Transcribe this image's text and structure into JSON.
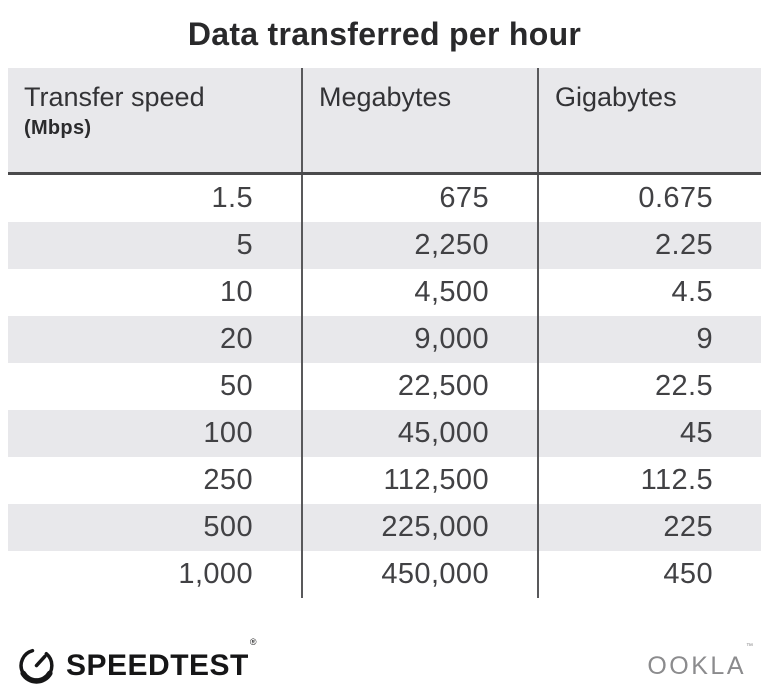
{
  "title": "Data transferred per hour",
  "header": {
    "transfer_speed_label": "Transfer speed",
    "transfer_speed_unit": "(Mbps)",
    "megabytes_label": "Megabytes",
    "gigabytes_label": "Gigabytes"
  },
  "chart_data": {
    "type": "table",
    "title": "Data transferred per hour",
    "columns": [
      "Transfer speed (Mbps)",
      "Megabytes",
      "Gigabytes"
    ],
    "rows": [
      [
        1.5,
        675,
        0.675
      ],
      [
        5,
        2250,
        2.25
      ],
      [
        10,
        4500,
        4.5
      ],
      [
        20,
        9000,
        9
      ],
      [
        50,
        22500,
        22.5
      ],
      [
        100,
        45000,
        45
      ],
      [
        250,
        112500,
        112.5
      ],
      [
        500,
        225000,
        225
      ],
      [
        1000,
        450000,
        450
      ]
    ]
  },
  "footer": {
    "speedtest_label": "SPEEDTEST",
    "speedtest_trademark": "®",
    "ookla_label": "OOKLA",
    "ookla_trademark": "™"
  },
  "colors": {
    "header_bg": "#e8e8eb",
    "row_stripe": "#e8e8eb",
    "header_rule": "#4a4a4c",
    "column_divider": "#59595b",
    "title_text": "#29292b",
    "data_text": "#414144",
    "logo_black": "#161617",
    "ookla_gray": "#8b8b8d"
  }
}
